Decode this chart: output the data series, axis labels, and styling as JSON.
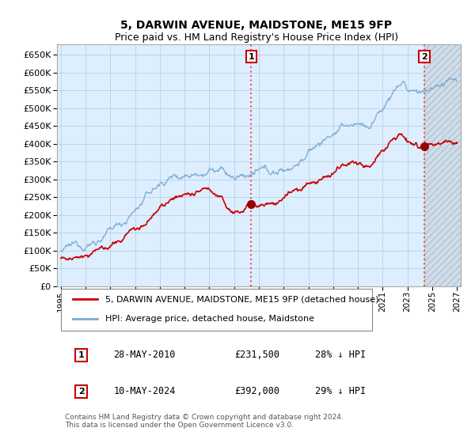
{
  "title": "5, DARWIN AVENUE, MAIDSTONE, ME15 9FP",
  "subtitle": "Price paid vs. HM Land Registry's House Price Index (HPI)",
  "ylim": [
    0,
    680000
  ],
  "yticks": [
    0,
    50000,
    100000,
    150000,
    200000,
    250000,
    300000,
    350000,
    400000,
    450000,
    500000,
    550000,
    600000,
    650000
  ],
  "hpi_color": "#7aaad0",
  "price_color": "#cc0000",
  "sale1_date_label": "28-MAY-2010",
  "sale1_price": 231500,
  "sale1_hpi_pct": "28% ↓ HPI",
  "sale2_date_label": "10-MAY-2024",
  "sale2_price": 392000,
  "sale2_hpi_pct": "29% ↓ HPI",
  "legend_line1": "5, DARWIN AVENUE, MAIDSTONE, ME15 9FP (detached house)",
  "legend_line2": "HPI: Average price, detached house, Maidstone",
  "footnote": "Contains HM Land Registry data © Crown copyright and database right 2024.\nThis data is licensed under the Open Government Licence v3.0.",
  "xstart_year": 1995,
  "xend_year": 2027,
  "sale1_year": 2010.38,
  "sale2_year": 2024.35,
  "plot_bg_color": "#ddeeff",
  "hatch_color": "#bbccdd",
  "background_color": "#ffffff",
  "grid_color": "#b8cfe0"
}
